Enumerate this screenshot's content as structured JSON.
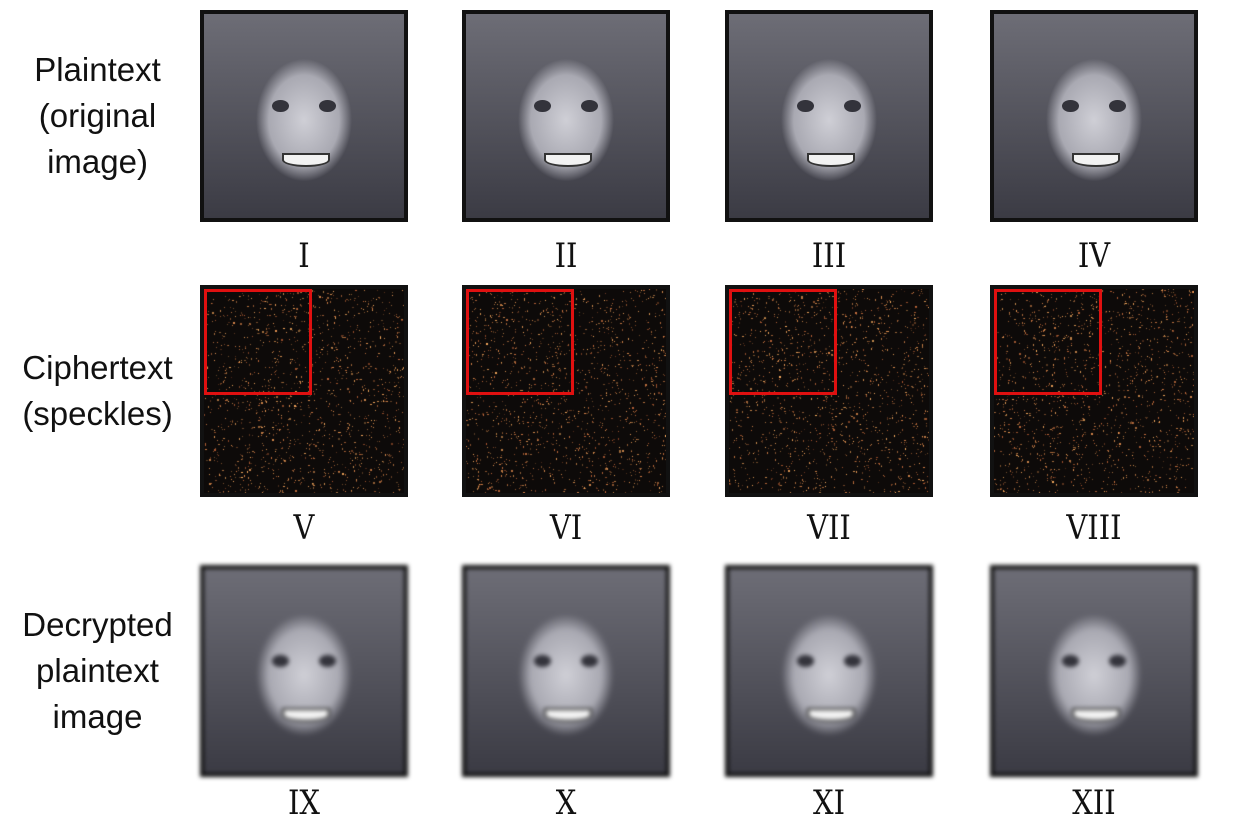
{
  "rows": [
    {
      "label": "Plaintext (original image)",
      "lines": [
        "Plaintext",
        "(original",
        "image)"
      ],
      "type": "face",
      "numerals": [
        "I",
        "II",
        "III",
        "IV"
      ]
    },
    {
      "label": "Ciphertext (speckles)",
      "lines": [
        "Ciphertext",
        "(speckles)"
      ],
      "type": "cipher",
      "numerals": [
        "V",
        "VI",
        "VII",
        "VIII"
      ]
    },
    {
      "label": "Decrypted plaintext image",
      "lines": [
        "Decrypted",
        "plaintext",
        "image"
      ],
      "type": "face-blurred",
      "numerals": [
        "IX",
        "X",
        "XI",
        "XII"
      ]
    }
  ],
  "colors": {
    "highlight_box": "#e01010",
    "speckle": "#e0a070",
    "cipher_background": "#0d0a09"
  }
}
